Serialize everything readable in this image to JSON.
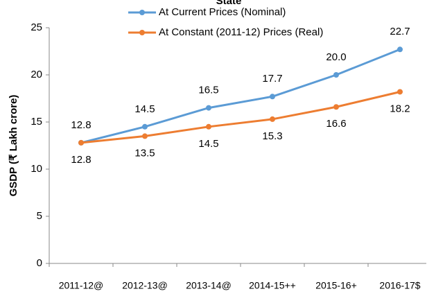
{
  "chart_data": {
    "type": "line",
    "title": "State",
    "y_label": "GSDP (₹ Lakh crore)",
    "categories": [
      "2011-12@",
      "2012-13@",
      "2013-14@",
      "2014-15++",
      "2015-16+",
      "2016-17$"
    ],
    "series": [
      {
        "name": "At Current Prices (Nominal)",
        "color": "#5b9bd5",
        "values": [
          12.8,
          14.5,
          16.5,
          17.7,
          20.0,
          22.7
        ],
        "value_labels": [
          "12.8",
          "14.5",
          "16.5",
          "17.7",
          "20.0",
          "22.7"
        ]
      },
      {
        "name": "At Constant (2011-12) Prices (Real)",
        "color": "#ed7d31",
        "values": [
          12.8,
          13.5,
          14.5,
          15.3,
          16.6,
          18.2
        ],
        "value_labels": [
          "12.8",
          "13.5",
          "14.5",
          "15.3",
          "16.6",
          "18.2"
        ]
      }
    ],
    "ylim": [
      0,
      25
    ],
    "yticks": [
      0,
      5,
      10,
      15,
      20,
      25
    ],
    "grid": false,
    "legend": "top"
  }
}
